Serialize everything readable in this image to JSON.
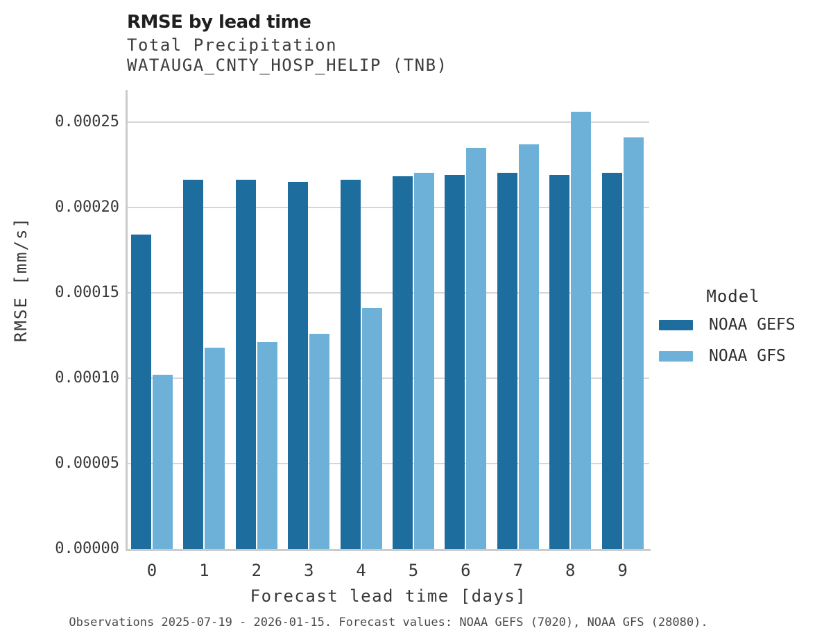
{
  "chart_data": {
    "type": "bar",
    "title": "RMSE by lead time",
    "subtitle": [
      "Total Precipitation",
      "WATAUGA_CNTY_HOSP_HELIP (TNB)"
    ],
    "xlabel": "Forecast lead time [days]",
    "ylabel": "RMSE [mm/s]",
    "categories": [
      "0",
      "1",
      "2",
      "3",
      "4",
      "5",
      "6",
      "7",
      "8",
      "9"
    ],
    "series": [
      {
        "name": "NOAA GEFS",
        "color": "#1d6e9e",
        "values": [
          0.000184,
          0.000216,
          0.000216,
          0.000215,
          0.000216,
          0.000218,
          0.000219,
          0.00022,
          0.000219,
          0.00022
        ]
      },
      {
        "name": "NOAA GFS",
        "color": "#6db1d9",
        "values": [
          0.000102,
          0.000118,
          0.000121,
          0.000126,
          0.000141,
          0.00022,
          0.000235,
          0.000237,
          0.000256,
          0.000241
        ]
      }
    ],
    "ylim": [
      0,
      0.0002685
    ],
    "yticks": [
      {
        "value": 0.0,
        "label": "0.00000"
      },
      {
        "value": 5e-05,
        "label": "0.00005"
      },
      {
        "value": 0.0001,
        "label": "0.00010"
      },
      {
        "value": 0.00015,
        "label": "0.00015"
      },
      {
        "value": 0.0002,
        "label": "0.00020"
      },
      {
        "value": 0.00025,
        "label": "0.00025"
      }
    ],
    "grid": "horizontal",
    "legend": {
      "title": "Model",
      "position": "right-center"
    },
    "caption": "Observations 2025-07-19 - 2026-01-15. Forecast values: NOAA GEFS (7020), NOAA GFS (28080)."
  }
}
